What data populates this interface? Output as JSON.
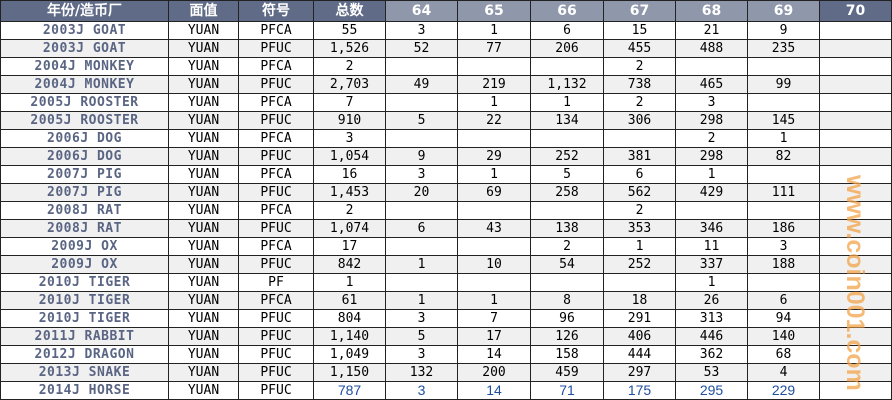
{
  "headers": [
    "年份/造币厂",
    "面值",
    "符号",
    "总数",
    "64",
    "65",
    "66",
    "67",
    "68",
    "69",
    "70"
  ],
  "rows": [
    [
      "2003J GOAT",
      "YUAN",
      "PFCA",
      "55",
      "3",
      "1",
      "6",
      "15",
      "21",
      "9",
      ""
    ],
    [
      "2003J GOAT",
      "YUAN",
      "PFUC",
      "1,526",
      "52",
      "77",
      "206",
      "455",
      "488",
      "235",
      ""
    ],
    [
      "2004J MONKEY",
      "YUAN",
      "PFCA",
      "2",
      "",
      "",
      "",
      "2",
      "",
      "",
      ""
    ],
    [
      "2004J MONKEY",
      "YUAN",
      "PFUC",
      "2,703",
      "49",
      "219",
      "1,132",
      "738",
      "465",
      "99",
      ""
    ],
    [
      "2005J ROOSTER",
      "YUAN",
      "PFCA",
      "7",
      "",
      "1",
      "1",
      "2",
      "3",
      "",
      ""
    ],
    [
      "2005J ROOSTER",
      "YUAN",
      "PFUC",
      "910",
      "5",
      "22",
      "134",
      "306",
      "298",
      "145",
      ""
    ],
    [
      "2006J DOG",
      "YUAN",
      "PFCA",
      "3",
      "",
      "",
      "",
      "",
      "2",
      "1",
      ""
    ],
    [
      "2006J DOG",
      "YUAN",
      "PFUC",
      "1,054",
      "9",
      "29",
      "252",
      "381",
      "298",
      "82",
      ""
    ],
    [
      "2007J PIG",
      "YUAN",
      "PFCA",
      "16",
      "3",
      "1",
      "5",
      "6",
      "1",
      "",
      ""
    ],
    [
      "2007J PIG",
      "YUAN",
      "PFUC",
      "1,453",
      "20",
      "69",
      "258",
      "562",
      "429",
      "111",
      ""
    ],
    [
      "2008J RAT",
      "YUAN",
      "PFCA",
      "2",
      "",
      "",
      "",
      "2",
      "",
      "",
      ""
    ],
    [
      "2008J RAT",
      "YUAN",
      "PFUC",
      "1,074",
      "6",
      "43",
      "138",
      "353",
      "346",
      "186",
      ""
    ],
    [
      "2009J OX",
      "YUAN",
      "PFCA",
      "17",
      "",
      "",
      "2",
      "1",
      "11",
      "3",
      ""
    ],
    [
      "2009J OX",
      "YUAN",
      "PFUC",
      "842",
      "1",
      "10",
      "54",
      "252",
      "337",
      "188",
      ""
    ],
    [
      "2010J TIGER",
      "YUAN",
      "PF",
      "1",
      "",
      "",
      "",
      "",
      "1",
      "",
      ""
    ],
    [
      "2010J TIGER",
      "YUAN",
      "PFCA",
      "61",
      "1",
      "1",
      "8",
      "18",
      "26",
      "6",
      ""
    ],
    [
      "2010J TIGER",
      "YUAN",
      "PFUC",
      "804",
      "3",
      "7",
      "96",
      "291",
      "313",
      "94",
      ""
    ],
    [
      "2011J RABBIT",
      "YUAN",
      "PFUC",
      "1,140",
      "5",
      "17",
      "126",
      "406",
      "446",
      "140",
      ""
    ],
    [
      "2012J DRAGON",
      "YUAN",
      "PFUC",
      "1,049",
      "3",
      "14",
      "158",
      "444",
      "362",
      "68",
      ""
    ],
    [
      "2013J SNAKE",
      "YUAN",
      "PFUC",
      "1,150",
      "132",
      "200",
      "459",
      "297",
      "53",
      "4",
      ""
    ],
    [
      "2014J HORSE",
      "YUAN",
      "PFUC",
      "787",
      "3",
      "14",
      "71",
      "175",
      "295",
      "229",
      ""
    ]
  ],
  "watermark": "www.coin001.com"
}
